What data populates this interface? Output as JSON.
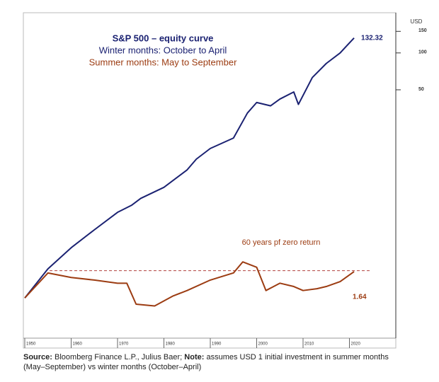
{
  "chart_data": {
    "type": "line",
    "title": "S&P 500 – equity curve",
    "y_axis_label": "USD",
    "y_scale": "log",
    "xlim": [
      1950,
      2030
    ],
    "xticks": [
      1950,
      1960,
      1970,
      1980,
      1990,
      2000,
      2010,
      2020
    ],
    "ylim": [
      0.47,
      210
    ],
    "yticks": [
      50,
      100,
      150
    ],
    "series": [
      {
        "name": "Winter months: October to April",
        "color": "#1b2272",
        "x": [
          1950,
          1955,
          1960,
          1965,
          1970,
          1973,
          1975,
          1980,
          1985,
          1987,
          1990,
          1995,
          1998,
          2000,
          2003,
          2005,
          2008,
          2009,
          2012,
          2015,
          2018,
          2019,
          2021
        ],
        "values": [
          1,
          1.73,
          2.57,
          3.6,
          5.0,
          5.7,
          6.5,
          8.0,
          11.1,
          13.6,
          16.6,
          20.2,
          32.3,
          39.4,
          37,
          42,
          48,
          38,
          63,
          82,
          100,
          110,
          132.32
        ]
      },
      {
        "name": "Summer months: May to September",
        "color": "#9c3c12",
        "x": [
          1950,
          1955,
          1960,
          1965,
          1970,
          1972,
          1974,
          1978,
          1982,
          1985,
          1990,
          1995,
          1997,
          2000,
          2002,
          2005,
          2008,
          2010,
          2013,
          2015,
          2018,
          2021
        ],
        "values": [
          1,
          1.6,
          1.47,
          1.4,
          1.32,
          1.32,
          0.89,
          0.86,
          1.04,
          1.15,
          1.4,
          1.6,
          1.97,
          1.78,
          1.15,
          1.32,
          1.24,
          1.15,
          1.19,
          1.24,
          1.36,
          1.64
        ]
      }
    ],
    "reference_line": {
      "value": 1.67,
      "label": "60 years pf zero return"
    },
    "source": {
      "label": "Source:",
      "text": "Bloomberg Finance L.P., Julius Baer;",
      "note_label": "Note:",
      "note_text": "assumes USD 1 initial investment in summer months",
      "note_text_2": "(May–September) vs winter months (October–April)"
    }
  }
}
